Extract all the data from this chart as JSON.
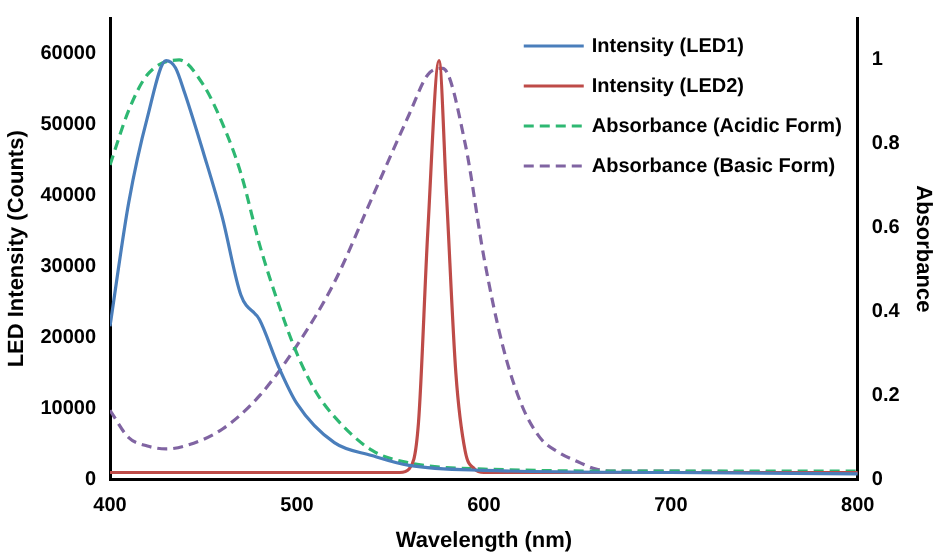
{
  "chart_data": {
    "type": "line",
    "xlabel": "Wavelength (nm)",
    "ylabel": "LED Intensity (Counts)",
    "y2label": "Absorbance",
    "xlim": [
      400,
      800
    ],
    "xticks": [
      400,
      500,
      600,
      700,
      800
    ],
    "ylim": [
      0,
      65000
    ],
    "yticks": [
      0,
      10000,
      20000,
      30000,
      40000,
      50000,
      60000
    ],
    "y2lim": [
      0,
      1.1
    ],
    "y2ticks": [
      0,
      0.2,
      0.4,
      0.6,
      0.8,
      1
    ],
    "grid": false,
    "legend": "top right",
    "marker": "none",
    "series": [
      {
        "name": "Intensity (LED1)",
        "color": "#4a7ebb",
        "line_style": "solid",
        "x": [
          400,
          410,
          420,
          430,
          435,
          440,
          450,
          460,
          470,
          480,
          490,
          500,
          520,
          540,
          560,
          600,
          700,
          800
        ],
        "values": [
          21600,
          39000,
          51000,
          59000,
          58000,
          54400,
          46000,
          37000,
          26000,
          22500,
          16000,
          10700,
          5200,
          3400,
          2000,
          1300,
          1000,
          800
        ]
      },
      {
        "name": "Intensity (LED2)",
        "color": "#be4b48",
        "line_style": "solid",
        "x": [
          400,
          500,
          555,
          560,
          565,
          570,
          576,
          580,
          585,
          590,
          595,
          600,
          700,
          800
        ],
        "values": [
          1000,
          1000,
          1000,
          1500,
          8000,
          35000,
          59000,
          40000,
          15000,
          4000,
          1500,
          1000,
          1000,
          1000
        ]
      },
      {
        "name": "Absorbance (Acidic Form)",
        "color": "#2eb872",
        "line_style": "dashed",
        "axis": "y2",
        "x": [
          400,
          410,
          420,
          437,
          450,
          460,
          470,
          480,
          490,
          500,
          510,
          520,
          540,
          560,
          600,
          700,
          800
        ],
        "values": [
          0.75,
          0.88,
          0.965,
          1.0,
          0.94,
          0.85,
          0.73,
          0.56,
          0.42,
          0.3,
          0.21,
          0.15,
          0.07,
          0.04,
          0.025,
          0.02,
          0.02
        ]
      },
      {
        "name": "Absorbance (Basic Form)",
        "color": "#8064a2",
        "line_style": "dashed",
        "axis": "y2",
        "x": [
          400,
          410,
          420,
          430,
          440,
          460,
          480,
          500,
          520,
          540,
          560,
          570,
          578,
          590,
          600,
          610,
          620,
          630,
          640,
          650,
          660,
          670,
          700,
          800
        ],
        "values": [
          0.165,
          0.1,
          0.08,
          0.073,
          0.08,
          0.12,
          0.2,
          0.32,
          0.47,
          0.67,
          0.87,
          0.965,
          0.98,
          0.8,
          0.53,
          0.32,
          0.18,
          0.1,
          0.065,
          0.043,
          0.025,
          0.02,
          0.02,
          0.015
        ]
      }
    ]
  }
}
